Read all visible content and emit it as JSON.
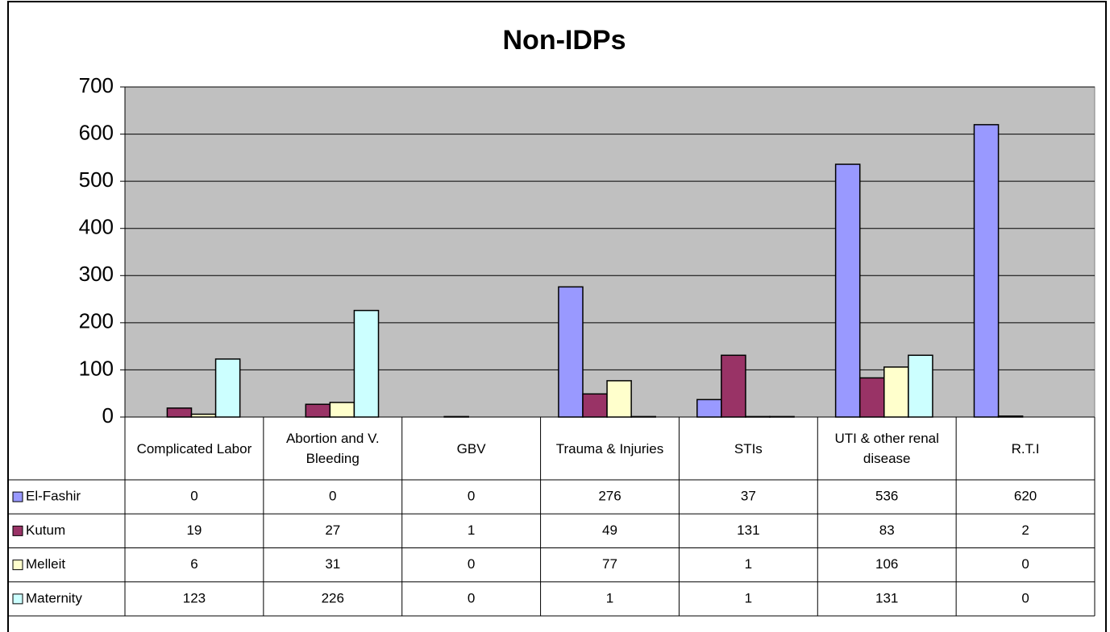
{
  "chart_data": {
    "type": "bar",
    "title": "Non-IDPs",
    "categories": [
      "Complicated Labor",
      "Abortion and V. Bleeding",
      "GBV",
      "Trauma & Injuries",
      "STIs",
      "UTI & other renal disease",
      "R.T.I"
    ],
    "series": [
      {
        "name": "El-Fashir",
        "color": "#9999ff",
        "values": [
          0,
          0,
          0,
          276,
          37,
          536,
          620
        ]
      },
      {
        "name": "Kutum",
        "color": "#993366",
        "values": [
          19,
          27,
          1,
          49,
          131,
          83,
          2
        ]
      },
      {
        "name": "Melleit",
        "color": "#ffffcc",
        "values": [
          6,
          31,
          0,
          77,
          1,
          106,
          0
        ]
      },
      {
        "name": "Maternity",
        "color": "#ccffff",
        "values": [
          123,
          226,
          0,
          1,
          1,
          131,
          0
        ]
      }
    ],
    "ylim": [
      0,
      700
    ],
    "yticks": [
      0,
      100,
      200,
      300,
      400,
      500,
      600,
      700
    ],
    "grid": true,
    "plot_background": "#c0c0c0"
  }
}
